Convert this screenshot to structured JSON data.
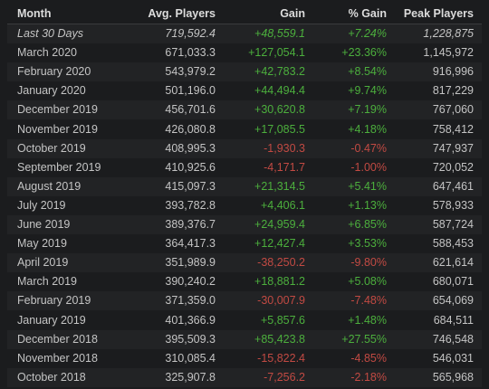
{
  "headers": {
    "month": "Month",
    "avg_players": "Avg. Players",
    "gain": "Gain",
    "pct_gain": "% Gain",
    "peak_players": "Peak Players"
  },
  "rows": [
    {
      "month": "Last 30 Days",
      "avg": "719,592.4",
      "gain": "+48,559.1",
      "pct": "+7.24%",
      "peak": "1,228,875",
      "trend": "pos"
    },
    {
      "month": "March 2020",
      "avg": "671,033.3",
      "gain": "+127,054.1",
      "pct": "+23.36%",
      "peak": "1,145,972",
      "trend": "pos"
    },
    {
      "month": "February 2020",
      "avg": "543,979.2",
      "gain": "+42,783.2",
      "pct": "+8.54%",
      "peak": "916,996",
      "trend": "pos"
    },
    {
      "month": "January 2020",
      "avg": "501,196.0",
      "gain": "+44,494.4",
      "pct": "+9.74%",
      "peak": "817,229",
      "trend": "pos"
    },
    {
      "month": "December 2019",
      "avg": "456,701.6",
      "gain": "+30,620.8",
      "pct": "+7.19%",
      "peak": "767,060",
      "trend": "pos"
    },
    {
      "month": "November 2019",
      "avg": "426,080.8",
      "gain": "+17,085.5",
      "pct": "+4.18%",
      "peak": "758,412",
      "trend": "pos"
    },
    {
      "month": "October 2019",
      "avg": "408,995.3",
      "gain": "-1,930.3",
      "pct": "-0.47%",
      "peak": "747,937",
      "trend": "neg"
    },
    {
      "month": "September 2019",
      "avg": "410,925.6",
      "gain": "-4,171.7",
      "pct": "-1.00%",
      "peak": "720,052",
      "trend": "neg"
    },
    {
      "month": "August 2019",
      "avg": "415,097.3",
      "gain": "+21,314.5",
      "pct": "+5.41%",
      "peak": "647,461",
      "trend": "pos"
    },
    {
      "month": "July 2019",
      "avg": "393,782.8",
      "gain": "+4,406.1",
      "pct": "+1.13%",
      "peak": "578,933",
      "trend": "pos"
    },
    {
      "month": "June 2019",
      "avg": "389,376.7",
      "gain": "+24,959.4",
      "pct": "+6.85%",
      "peak": "587,724",
      "trend": "pos"
    },
    {
      "month": "May 2019",
      "avg": "364,417.3",
      "gain": "+12,427.4",
      "pct": "+3.53%",
      "peak": "588,453",
      "trend": "pos"
    },
    {
      "month": "April 2019",
      "avg": "351,989.9",
      "gain": "-38,250.2",
      "pct": "-9.80%",
      "peak": "621,614",
      "trend": "neg"
    },
    {
      "month": "March 2019",
      "avg": "390,240.2",
      "gain": "+18,881.2",
      "pct": "+5.08%",
      "peak": "680,071",
      "trend": "pos"
    },
    {
      "month": "February 2019",
      "avg": "371,359.0",
      "gain": "-30,007.9",
      "pct": "-7.48%",
      "peak": "654,069",
      "trend": "neg"
    },
    {
      "month": "January 2019",
      "avg": "401,366.9",
      "gain": "+5,857.6",
      "pct": "+1.48%",
      "peak": "684,511",
      "trend": "pos"
    },
    {
      "month": "December 2018",
      "avg": "395,509.3",
      "gain": "+85,423.8",
      "pct": "+27.55%",
      "peak": "746,548",
      "trend": "pos"
    },
    {
      "month": "November 2018",
      "avg": "310,085.4",
      "gain": "-15,822.4",
      "pct": "-4.85%",
      "peak": "546,031",
      "trend": "neg"
    },
    {
      "month": "October 2018",
      "avg": "325,907.8",
      "gain": "-7,256.2",
      "pct": "-2.18%",
      "peak": "565,968",
      "trend": "neg"
    }
  ],
  "colors": {
    "background": "#1b1c1e",
    "positive": "#4caf3d",
    "negative": "#c24a43",
    "text": "#c4c4c4"
  }
}
